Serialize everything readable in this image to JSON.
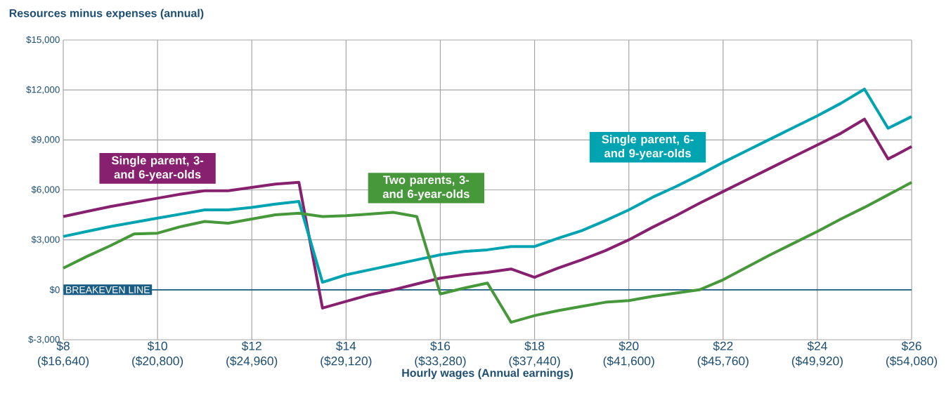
{
  "chart_data": {
    "type": "line",
    "title": "Resources minus expenses (annual)",
    "xlabel": "Hourly wages (Annual earnings)",
    "x": [
      8,
      8.5,
      9,
      9.5,
      10,
      10.5,
      11,
      11.5,
      12,
      12.5,
      13,
      13.5,
      14,
      14.5,
      15,
      15.5,
      16,
      16.5,
      17,
      17.5,
      18,
      18.5,
      19,
      19.5,
      20,
      20.5,
      21,
      21.5,
      22,
      22.5,
      23,
      23.5,
      24,
      24.5,
      25,
      25.5,
      26
    ],
    "series": [
      {
        "name": "Single parent, 3- and 6-year-olds",
        "color": "#86206f",
        "values": [
          4400,
          4700,
          5000,
          5250,
          5500,
          5750,
          5950,
          5950,
          6150,
          6350,
          6450,
          -1100,
          -700,
          -300,
          0,
          350,
          700,
          900,
          1050,
          1250,
          750,
          1300,
          1800,
          2350,
          3000,
          3750,
          4450,
          5200,
          5900,
          6600,
          7300,
          8000,
          8700,
          9400,
          10250,
          7850,
          8600
        ]
      },
      {
        "name": "Single parent, 6- and 9-year-olds",
        "color": "#00a3b0",
        "values": [
          3200,
          3500,
          3800,
          4050,
          4300,
          4550,
          4800,
          4800,
          4950,
          5150,
          5300,
          450,
          900,
          1200,
          1500,
          1800,
          2100,
          2300,
          2400,
          2600,
          2600,
          3100,
          3550,
          4150,
          4800,
          5550,
          6200,
          6900,
          7650,
          8350,
          9050,
          9750,
          10450,
          11200,
          12050,
          9700,
          10400
        ]
      },
      {
        "name": "Two parents, 3- and 6-year-olds",
        "color": "#46983b",
        "values": [
          1300,
          2000,
          2650,
          3350,
          3400,
          3800,
          4100,
          4000,
          4250,
          4500,
          4600,
          4400,
          4450,
          4550,
          4650,
          4400,
          -250,
          100,
          400,
          -1950,
          -1550,
          -1250,
          -1000,
          -750,
          -650,
          -400,
          -200,
          0,
          600,
          1350,
          2100,
          2800,
          3500,
          4250,
          4950,
          5700,
          6450
        ]
      }
    ],
    "xlim": [
      8,
      26
    ],
    "xticks": [
      {
        "value": 8,
        "label": "$8"
      },
      {
        "value": 10,
        "label": "$10"
      },
      {
        "value": 12,
        "label": "$12"
      },
      {
        "value": 14,
        "label": "$14"
      },
      {
        "value": 16,
        "label": "$16"
      },
      {
        "value": 18,
        "label": "$18"
      },
      {
        "value": 20,
        "label": "$20"
      },
      {
        "value": 22,
        "label": "$22"
      },
      {
        "value": 24,
        "label": "$24"
      },
      {
        "value": 26,
        "label": "$26"
      }
    ],
    "x2lim": [
      16640,
      54080
    ],
    "x2ticks": [
      {
        "value": 16640,
        "label": "($16,640)"
      },
      {
        "value": 20800,
        "label": "($20,800)"
      },
      {
        "value": 24960,
        "label": "($24,960)"
      },
      {
        "value": 29120,
        "label": "($29,120)"
      },
      {
        "value": 33280,
        "label": "($33,280)"
      },
      {
        "value": 37440,
        "label": "($37,440)"
      },
      {
        "value": 41600,
        "label": "($41,600)"
      },
      {
        "value": 45760,
        "label": "($45,760)"
      },
      {
        "value": 49920,
        "label": "($49,920)"
      },
      {
        "value": 54080,
        "label": "($54,080)"
      }
    ],
    "ylim": [
      -3000,
      15000
    ],
    "yticks": [
      {
        "value": -3000,
        "label": "$-3,000"
      },
      {
        "value": 0,
        "label": "$0"
      },
      {
        "value": 3000,
        "label": "$3,000"
      },
      {
        "value": 6000,
        "label": "$6,000"
      },
      {
        "value": 9000,
        "label": "$9,000"
      },
      {
        "value": 12000,
        "label": "$12,000"
      },
      {
        "value": 15000,
        "label": "$15,000"
      }
    ],
    "ref_lines": [
      {
        "axis": "y",
        "value": 0,
        "label": "BREAKEVEN LINE",
        "color": "#1b5e85"
      }
    ],
    "grid": true
  }
}
